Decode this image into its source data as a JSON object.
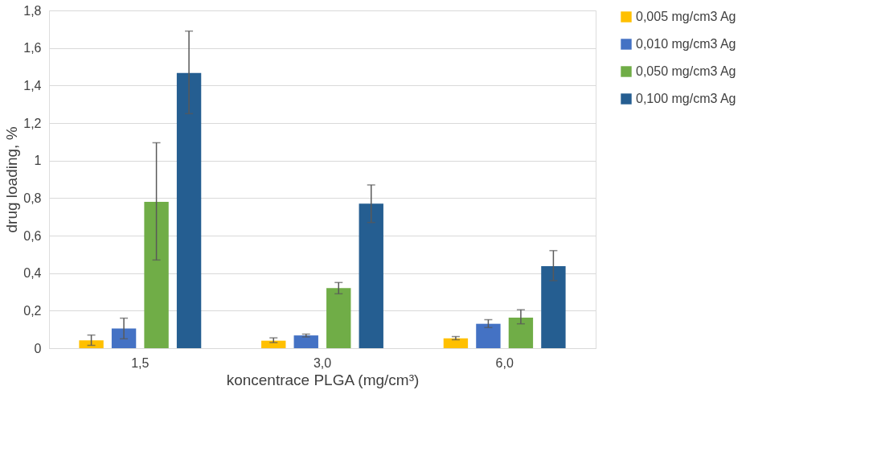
{
  "chart_data": {
    "type": "bar",
    "xlabel": "koncentrace PLGA (mg/cm³)",
    "ylabel": "drug loading, %",
    "categories": [
      "1,5",
      "3,0",
      "6,0"
    ],
    "series": [
      {
        "name": "0,005 mg/cm3 Ag",
        "color": "#ffc000",
        "values": [
          0.042,
          0.04,
          0.053
        ],
        "errors": [
          [
            0.015,
            0.07
          ],
          [
            0.03,
            0.055
          ],
          [
            0.045,
            0.062
          ]
        ]
      },
      {
        "name": "0,010 mg/cm3 Ag",
        "color": "#4472c4",
        "values": [
          0.105,
          0.068,
          0.13
        ],
        "errors": [
          [
            0.05,
            0.16
          ],
          [
            0.06,
            0.075
          ],
          [
            0.11,
            0.152
          ]
        ]
      },
      {
        "name": "0,050 mg/cm3 Ag",
        "color": "#70ad47",
        "values": [
          0.78,
          0.32,
          0.163
        ],
        "errors": [
          [
            0.47,
            1.095
          ],
          [
            0.29,
            0.35
          ],
          [
            0.13,
            0.205
          ]
        ]
      },
      {
        "name": "0,100 mg/cm3 Ag",
        "color": "#255e91",
        "values": [
          1.467,
          0.77,
          0.437
        ],
        "errors": [
          [
            1.25,
            1.69
          ],
          [
            0.67,
            0.87
          ],
          [
            0.36,
            0.52
          ]
        ]
      }
    ],
    "ylim": [
      0,
      1.8
    ],
    "yticks": [
      0,
      {
        "value": 0.2,
        "label": "0,2"
      },
      {
        "value": 0.4,
        "label": "0,4"
      },
      {
        "value": 0.6,
        "label": "0,6"
      },
      {
        "value": 0.8,
        "label": "0,8"
      },
      1,
      {
        "value": 1.2,
        "label": "1,2"
      },
      {
        "value": 1.4,
        "label": "1,4"
      },
      {
        "value": 1.6,
        "label": "1,6"
      },
      {
        "value": 1.8,
        "label": "1,8"
      }
    ],
    "grid": "y",
    "legend": "right"
  }
}
